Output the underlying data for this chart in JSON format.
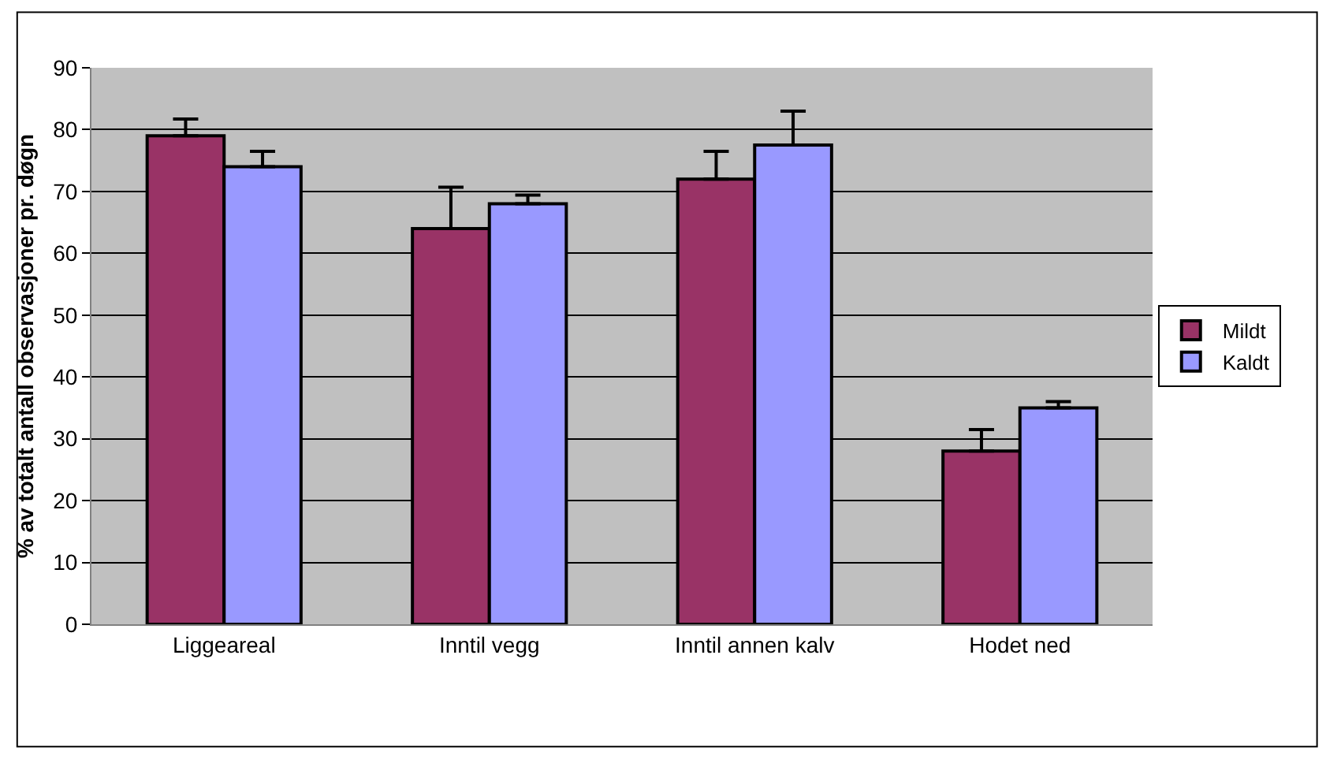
{
  "chart_data": {
    "type": "bar",
    "ylabel": "% av totalt antall observasjoner pr. døgn",
    "categories": [
      "Liggeareal",
      "Inntil vegg",
      "Inntil annen kalv",
      "Hodet ned"
    ],
    "series": [
      {
        "name": "Mildt",
        "color": "#993366",
        "values": [
          79,
          64,
          72,
          28
        ],
        "errors": [
          [
            79,
            81.7
          ],
          [
            64,
            70.7
          ],
          [
            72,
            76.5
          ],
          [
            28,
            31.5
          ]
        ]
      },
      {
        "name": "Kaldt",
        "color": "#9999ff",
        "values": [
          74,
          68,
          77.5,
          35
        ],
        "errors": [
          [
            74,
            76.5
          ],
          [
            68,
            69.4
          ],
          [
            77.5,
            83
          ],
          [
            35,
            36
          ]
        ]
      }
    ],
    "ylim": [
      0,
      90
    ],
    "yticks": [
      0,
      10,
      20,
      30,
      40,
      50,
      60,
      70,
      80,
      90
    ],
    "grid": "y",
    "legend": "right"
  }
}
